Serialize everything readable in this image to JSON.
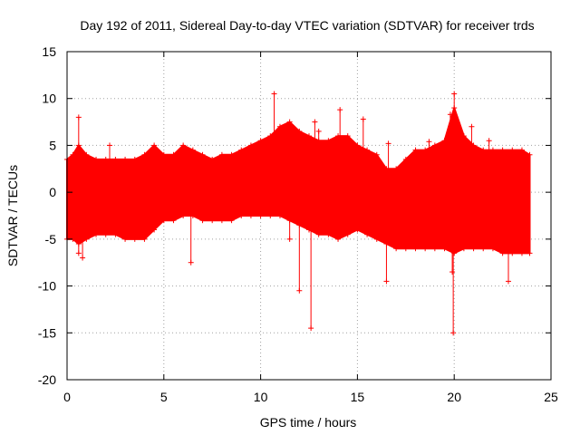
{
  "chart_data": {
    "type": "scatter",
    "title": "Day 192 of 2011, Sidereal Day-to-day VTEC variation (SDTVAR) for receiver trds",
    "xlabel": "GPS time / hours",
    "ylabel": "SDTVAR / TECUs",
    "xlim": [
      0,
      25
    ],
    "ylim": [
      -20,
      15
    ],
    "xticks": [
      "0",
      "5",
      "10",
      "15",
      "20",
      "25"
    ],
    "yticks": [
      "15",
      "10",
      "5",
      "0",
      "-5",
      "-10",
      "-15",
      "-20"
    ],
    "grid": true,
    "marker": "+",
    "series": [
      {
        "name": "SDTVAR",
        "color": "#ff0000",
        "envelope": {
          "x": [
            0.0,
            0.3,
            0.6,
            1.0,
            1.5,
            2.0,
            2.5,
            3.0,
            3.5,
            4.0,
            4.5,
            5.0,
            5.5,
            6.0,
            6.5,
            7.0,
            7.5,
            8.0,
            8.5,
            9.0,
            9.5,
            10.0,
            10.5,
            11.0,
            11.5,
            12.0,
            12.5,
            13.0,
            13.5,
            14.0,
            14.5,
            15.0,
            15.5,
            16.0,
            16.5,
            17.0,
            17.5,
            18.0,
            18.5,
            19.0,
            19.5,
            20.0,
            20.5,
            21.0,
            21.5,
            22.0,
            22.5,
            23.0,
            23.5,
            23.9
          ],
          "upper": [
            3.5,
            4.0,
            5.0,
            4.0,
            3.5,
            3.5,
            3.5,
            3.5,
            3.5,
            4.0,
            5.0,
            4.0,
            4.0,
            5.0,
            4.5,
            4.0,
            3.5,
            4.0,
            4.0,
            4.5,
            5.0,
            5.5,
            6.0,
            7.0,
            7.5,
            6.5,
            6.0,
            5.5,
            5.5,
            6.0,
            6.0,
            5.0,
            4.5,
            4.0,
            2.5,
            2.5,
            3.5,
            4.5,
            4.5,
            5.0,
            5.5,
            9.0,
            6.0,
            5.0,
            4.5,
            4.5,
            4.5,
            4.5,
            4.5,
            4.0
          ],
          "lower": [
            -5.0,
            -5.0,
            -5.5,
            -5.0,
            -4.5,
            -4.5,
            -4.5,
            -5.0,
            -5.0,
            -5.0,
            -4.0,
            -3.0,
            -3.0,
            -2.5,
            -2.5,
            -3.0,
            -3.0,
            -3.0,
            -3.0,
            -2.5,
            -2.5,
            -2.5,
            -2.5,
            -2.5,
            -3.0,
            -3.5,
            -4.0,
            -4.5,
            -4.5,
            -5.0,
            -4.5,
            -4.0,
            -4.5,
            -5.0,
            -5.5,
            -6.0,
            -6.0,
            -6.0,
            -6.0,
            -6.0,
            -6.0,
            -6.5,
            -6.0,
            -6.0,
            -6.0,
            -6.0,
            -6.5,
            -6.5,
            -6.5,
            -6.5
          ]
        },
        "spikes": [
          {
            "x": 0.6,
            "y": 8.0
          },
          {
            "x": 0.6,
            "y": -6.5
          },
          {
            "x": 0.8,
            "y": -7.0
          },
          {
            "x": 2.2,
            "y": 5.0
          },
          {
            "x": 6.4,
            "y": -7.5
          },
          {
            "x": 10.7,
            "y": 10.5
          },
          {
            "x": 11.5,
            "y": -5.0
          },
          {
            "x": 12.0,
            "y": -10.5
          },
          {
            "x": 12.6,
            "y": -14.5
          },
          {
            "x": 12.8,
            "y": 7.5
          },
          {
            "x": 13.0,
            "y": 6.5
          },
          {
            "x": 14.1,
            "y": 8.8
          },
          {
            "x": 15.3,
            "y": 7.8
          },
          {
            "x": 16.5,
            "y": -9.5
          },
          {
            "x": 16.6,
            "y": 5.2
          },
          {
            "x": 18.7,
            "y": 5.4
          },
          {
            "x": 19.8,
            "y": 8.3
          },
          {
            "x": 19.9,
            "y": -8.5
          },
          {
            "x": 19.95,
            "y": -15.0
          },
          {
            "x": 20.0,
            "y": 10.5
          },
          {
            "x": 20.9,
            "y": 7.0
          },
          {
            "x": 21.8,
            "y": 5.5
          },
          {
            "x": 22.8,
            "y": -9.5
          }
        ]
      }
    ]
  }
}
